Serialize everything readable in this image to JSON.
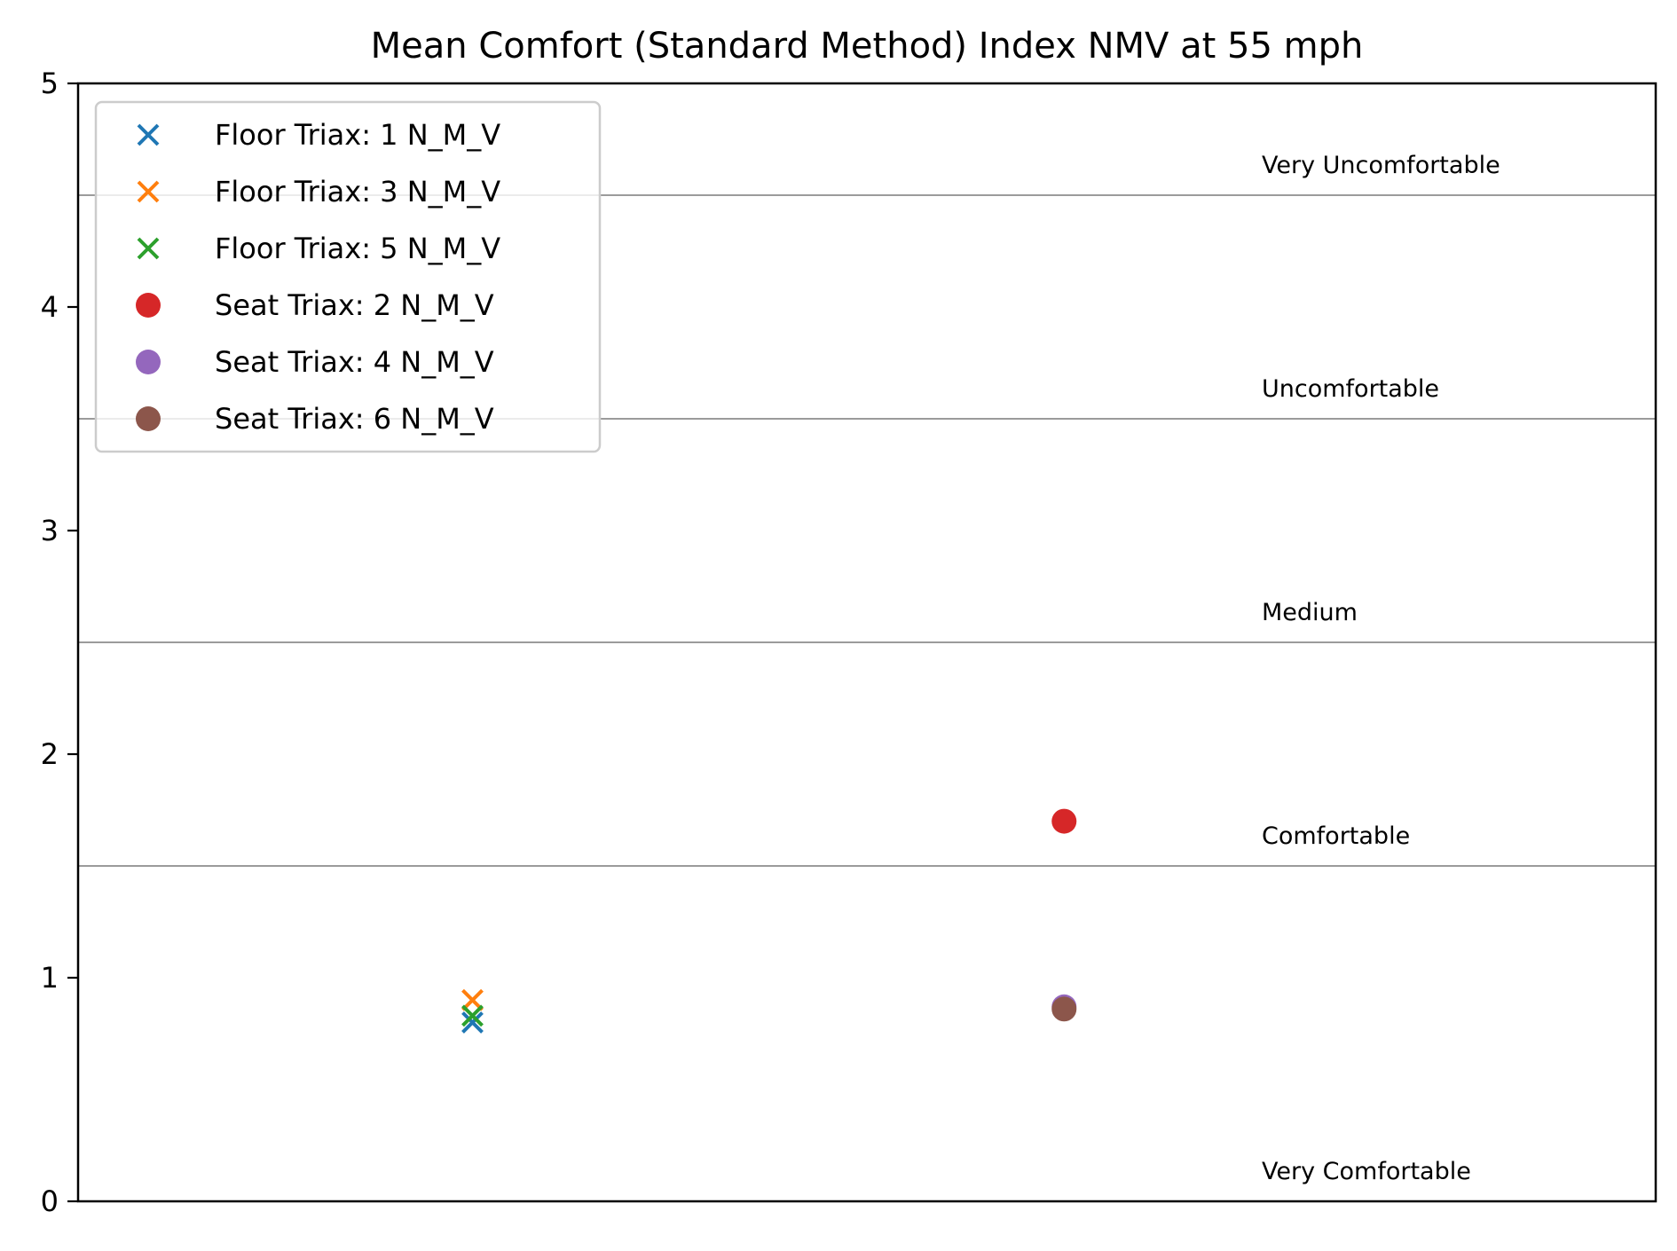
{
  "chart_data": {
    "type": "scatter",
    "title": "Mean Comfort (Standard Method) Index NMV at 55 mph",
    "xlabel": "",
    "ylabel": "",
    "ylim": [
      0,
      5
    ],
    "xlim": [
      0,
      1
    ],
    "yticks": [
      "0",
      "1",
      "2",
      "3",
      "4",
      "5"
    ],
    "grid": false,
    "legend_position": "upper-left",
    "reference_lines": [
      1.5,
      2.5,
      3.5,
      4.5
    ],
    "zones": [
      {
        "label": "Very Uncomfortable",
        "y": 4.6
      },
      {
        "label": "Uncomfortable",
        "y": 3.6
      },
      {
        "label": "Medium",
        "y": 2.6
      },
      {
        "label": "Comfortable",
        "y": 1.6
      },
      {
        "label": "Very Comfortable",
        "y": 0.1
      }
    ],
    "series": [
      {
        "name": "Floor Triax: 1 N_M_V",
        "marker": "x",
        "color": "#1f77b4",
        "points": [
          {
            "x": 0.25,
            "y": 0.8
          }
        ]
      },
      {
        "name": "Floor Triax: 3 N_M_V",
        "marker": "x",
        "color": "#ff7f0e",
        "points": [
          {
            "x": 0.25,
            "y": 0.9
          }
        ]
      },
      {
        "name": "Floor Triax: 5 N_M_V",
        "marker": "x",
        "color": "#2ca02c",
        "points": [
          {
            "x": 0.25,
            "y": 0.83
          }
        ]
      },
      {
        "name": "Seat Triax: 2 N_M_V",
        "marker": "o",
        "color": "#d62728",
        "points": [
          {
            "x": 0.625,
            "y": 1.7
          }
        ]
      },
      {
        "name": "Seat Triax: 4 N_M_V",
        "marker": "o",
        "color": "#9467bd",
        "points": [
          {
            "x": 0.625,
            "y": 0.87
          }
        ]
      },
      {
        "name": "Seat Triax: 6 N_M_V",
        "marker": "o",
        "color": "#8c564b",
        "points": [
          {
            "x": 0.625,
            "y": 0.86
          }
        ]
      }
    ]
  }
}
